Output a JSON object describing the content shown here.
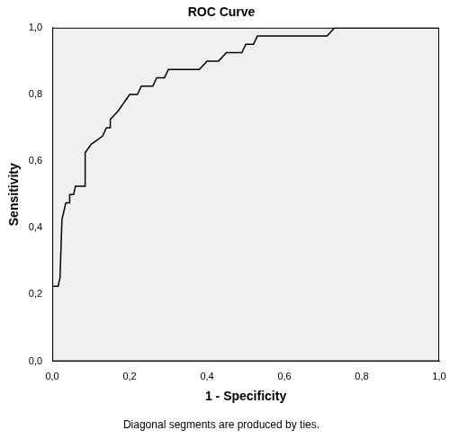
{
  "chart_data": {
    "type": "line",
    "title": "ROC Curve",
    "x_label": "1 - Specificity",
    "y_label": "Sensitivity",
    "annotations": [
      "Diagonal segments are produced by ties."
    ],
    "x": [
      0,
      0,
      0.015,
      0.02,
      0.025,
      0.03,
      0.035,
      0.045,
      0.045,
      0.055,
      0.06,
      0.085,
      0.085,
      0.1,
      0.13,
      0.14,
      0.15,
      0.15,
      0.17,
      0.2,
      0.22,
      0.23,
      0.26,
      0.27,
      0.29,
      0.3,
      0.38,
      0.4,
      0.43,
      0.45,
      0.49,
      0.5,
      0.52,
      0.53,
      0.71,
      0.73,
      1.0
    ],
    "values": [
      0,
      0.225,
      0.225,
      0.25,
      0.425,
      0.45,
      0.475,
      0.475,
      0.5,
      0.5,
      0.525,
      0.525,
      0.625,
      0.65,
      0.675,
      0.7,
      0.7,
      0.725,
      0.75,
      0.8,
      0.8,
      0.825,
      0.825,
      0.85,
      0.85,
      0.875,
      0.875,
      0.9,
      0.9,
      0.925,
      0.925,
      0.95,
      0.95,
      0.975,
      0.975,
      1.0,
      1.0
    ],
    "color": "#000000",
    "xlim": [
      0,
      1
    ],
    "ylim": [
      0,
      1
    ],
    "xticks": [
      {
        "value": 0,
        "label": "0,0"
      },
      {
        "value": 0.2,
        "label": "0,2"
      },
      {
        "value": 0.4,
        "label": "0,4"
      },
      {
        "value": 0.6,
        "label": "0,6"
      },
      {
        "value": 0.8,
        "label": "0,8"
      },
      {
        "value": 1,
        "label": "1,0"
      }
    ],
    "yticks": [
      {
        "value": 0,
        "label": "0,0"
      },
      {
        "value": 0.2,
        "label": "0,2"
      },
      {
        "value": 0.4,
        "label": "0,4"
      },
      {
        "value": 0.6,
        "label": "0,6"
      },
      {
        "value": 0.8,
        "label": "0,8"
      },
      {
        "value": 1,
        "label": "1,0"
      }
    ],
    "grid": false
  }
}
